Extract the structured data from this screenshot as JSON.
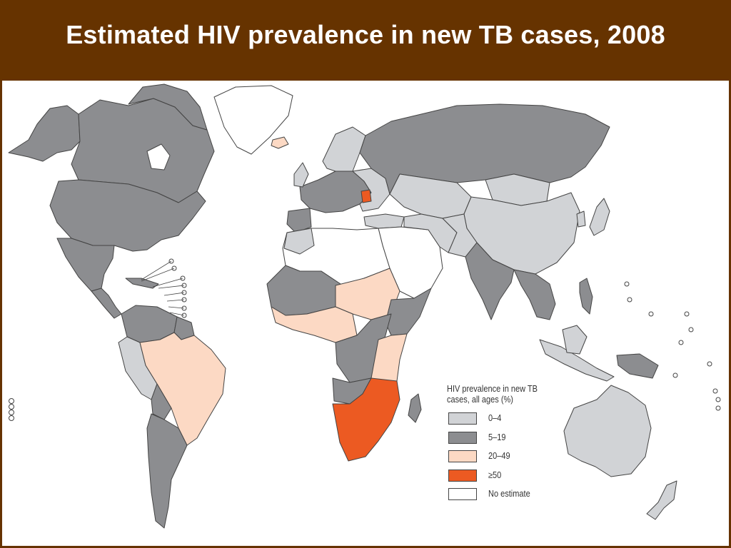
{
  "title": "Estimated HIV prevalence in new TB cases, 2008",
  "legend": {
    "title": "HIV prevalence in new TB cases, all ages (%)",
    "items": [
      {
        "label": "0–4",
        "color": "#d1d3d6"
      },
      {
        "label": "5–19",
        "color": "#8c8d90"
      },
      {
        "label": "20–49",
        "color": "#fcd9c4"
      },
      {
        "label": "≥50",
        "color": "#ec5a22"
      },
      {
        "label": "No estimate",
        "color": "#ffffff"
      }
    ]
  },
  "colors": {
    "header": "#663300",
    "title_text": "#ffffff",
    "border": "#444444"
  }
}
